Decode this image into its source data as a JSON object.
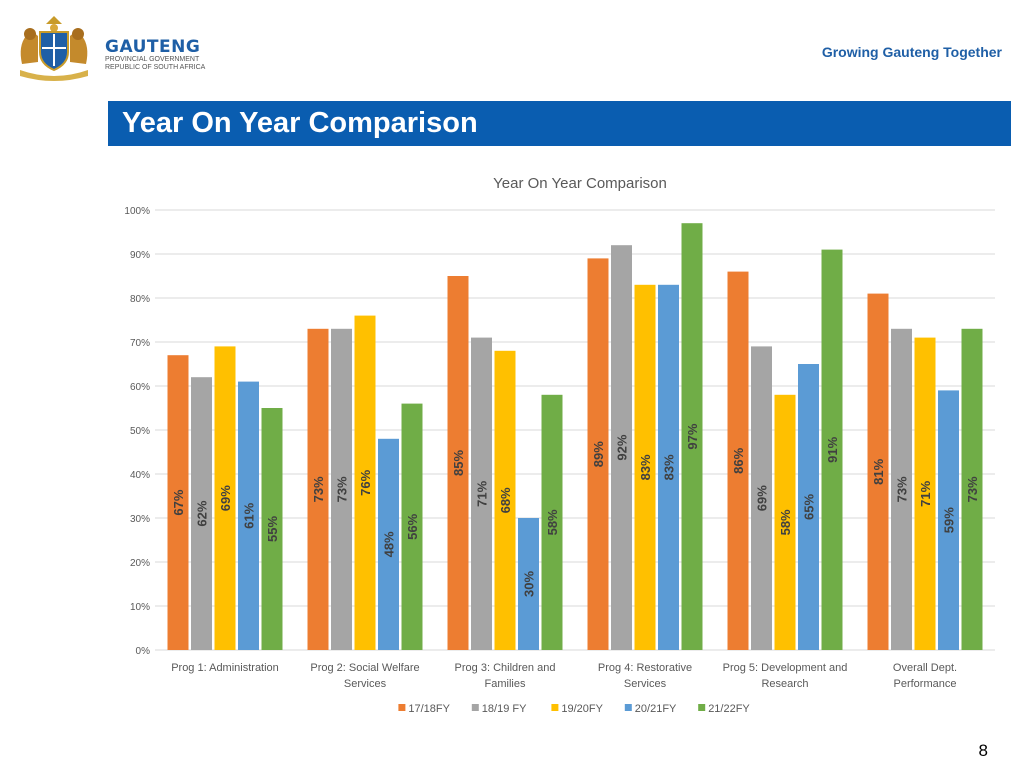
{
  "header": {
    "brand_name": "GAUTENG",
    "brand_line1": "PROVINCIAL GOVERNMENT",
    "brand_line2": "REPUBLIC OF SOUTH AFRICA",
    "tagline": "Growing Gauteng Together"
  },
  "slide": {
    "title": "Year On Year Comparison",
    "page_number": "8"
  },
  "colors": [
    "#ED7D31",
    "#A5A5A5",
    "#FFC000",
    "#5B9BD5",
    "#70AD47"
  ],
  "chart_data": {
    "type": "bar",
    "title": "Year On Year Comparison",
    "xlabel": "",
    "ylabel": "",
    "ylim": [
      0,
      100
    ],
    "yticks": [
      "0%",
      "10%",
      "20%",
      "30%",
      "40%",
      "50%",
      "60%",
      "70%",
      "80%",
      "90%",
      "100%"
    ],
    "categories": [
      [
        "Prog 1: Administration"
      ],
      [
        "Prog 2: Social Welfare",
        "Services"
      ],
      [
        "Prog 3: Children and",
        "Families"
      ],
      [
        "Prog 4:  Restorative",
        "Services"
      ],
      [
        "Prog 5: Development and",
        "Research"
      ],
      [
        "Overall Dept.",
        "Performance"
      ]
    ],
    "series": [
      {
        "name": "17/18FY",
        "values": [
          67,
          73,
          85,
          89,
          86,
          81
        ],
        "labels": [
          "67%",
          "73%",
          "85%",
          "89%",
          "86%",
          "81%"
        ]
      },
      {
        "name": "18/19 FY",
        "values": [
          62,
          73,
          71,
          92,
          69,
          73
        ],
        "labels": [
          "62%",
          "73%",
          "71%",
          "92%",
          "69%",
          "73%"
        ]
      },
      {
        "name": "19/20FY",
        "values": [
          69,
          76,
          68,
          83,
          58,
          71
        ],
        "labels": [
          "69%",
          "76%",
          "68%",
          "83%",
          "58%",
          "71%"
        ]
      },
      {
        "name": "20/21FY",
        "values": [
          61,
          48,
          30,
          83,
          65,
          59
        ],
        "labels": [
          "61%",
          "48%",
          "30%",
          "83%",
          "65%",
          "59%"
        ]
      },
      {
        "name": "21/22FY",
        "values": [
          55,
          56,
          58,
          97,
          91,
          73
        ],
        "labels": [
          "55%",
          "56%",
          "58%",
          "97%",
          "91%",
          "73%"
        ]
      }
    ],
    "data_label_position": "midpoint of bar, rotated vertical",
    "legend": "bottom-center",
    "grid": true
  }
}
